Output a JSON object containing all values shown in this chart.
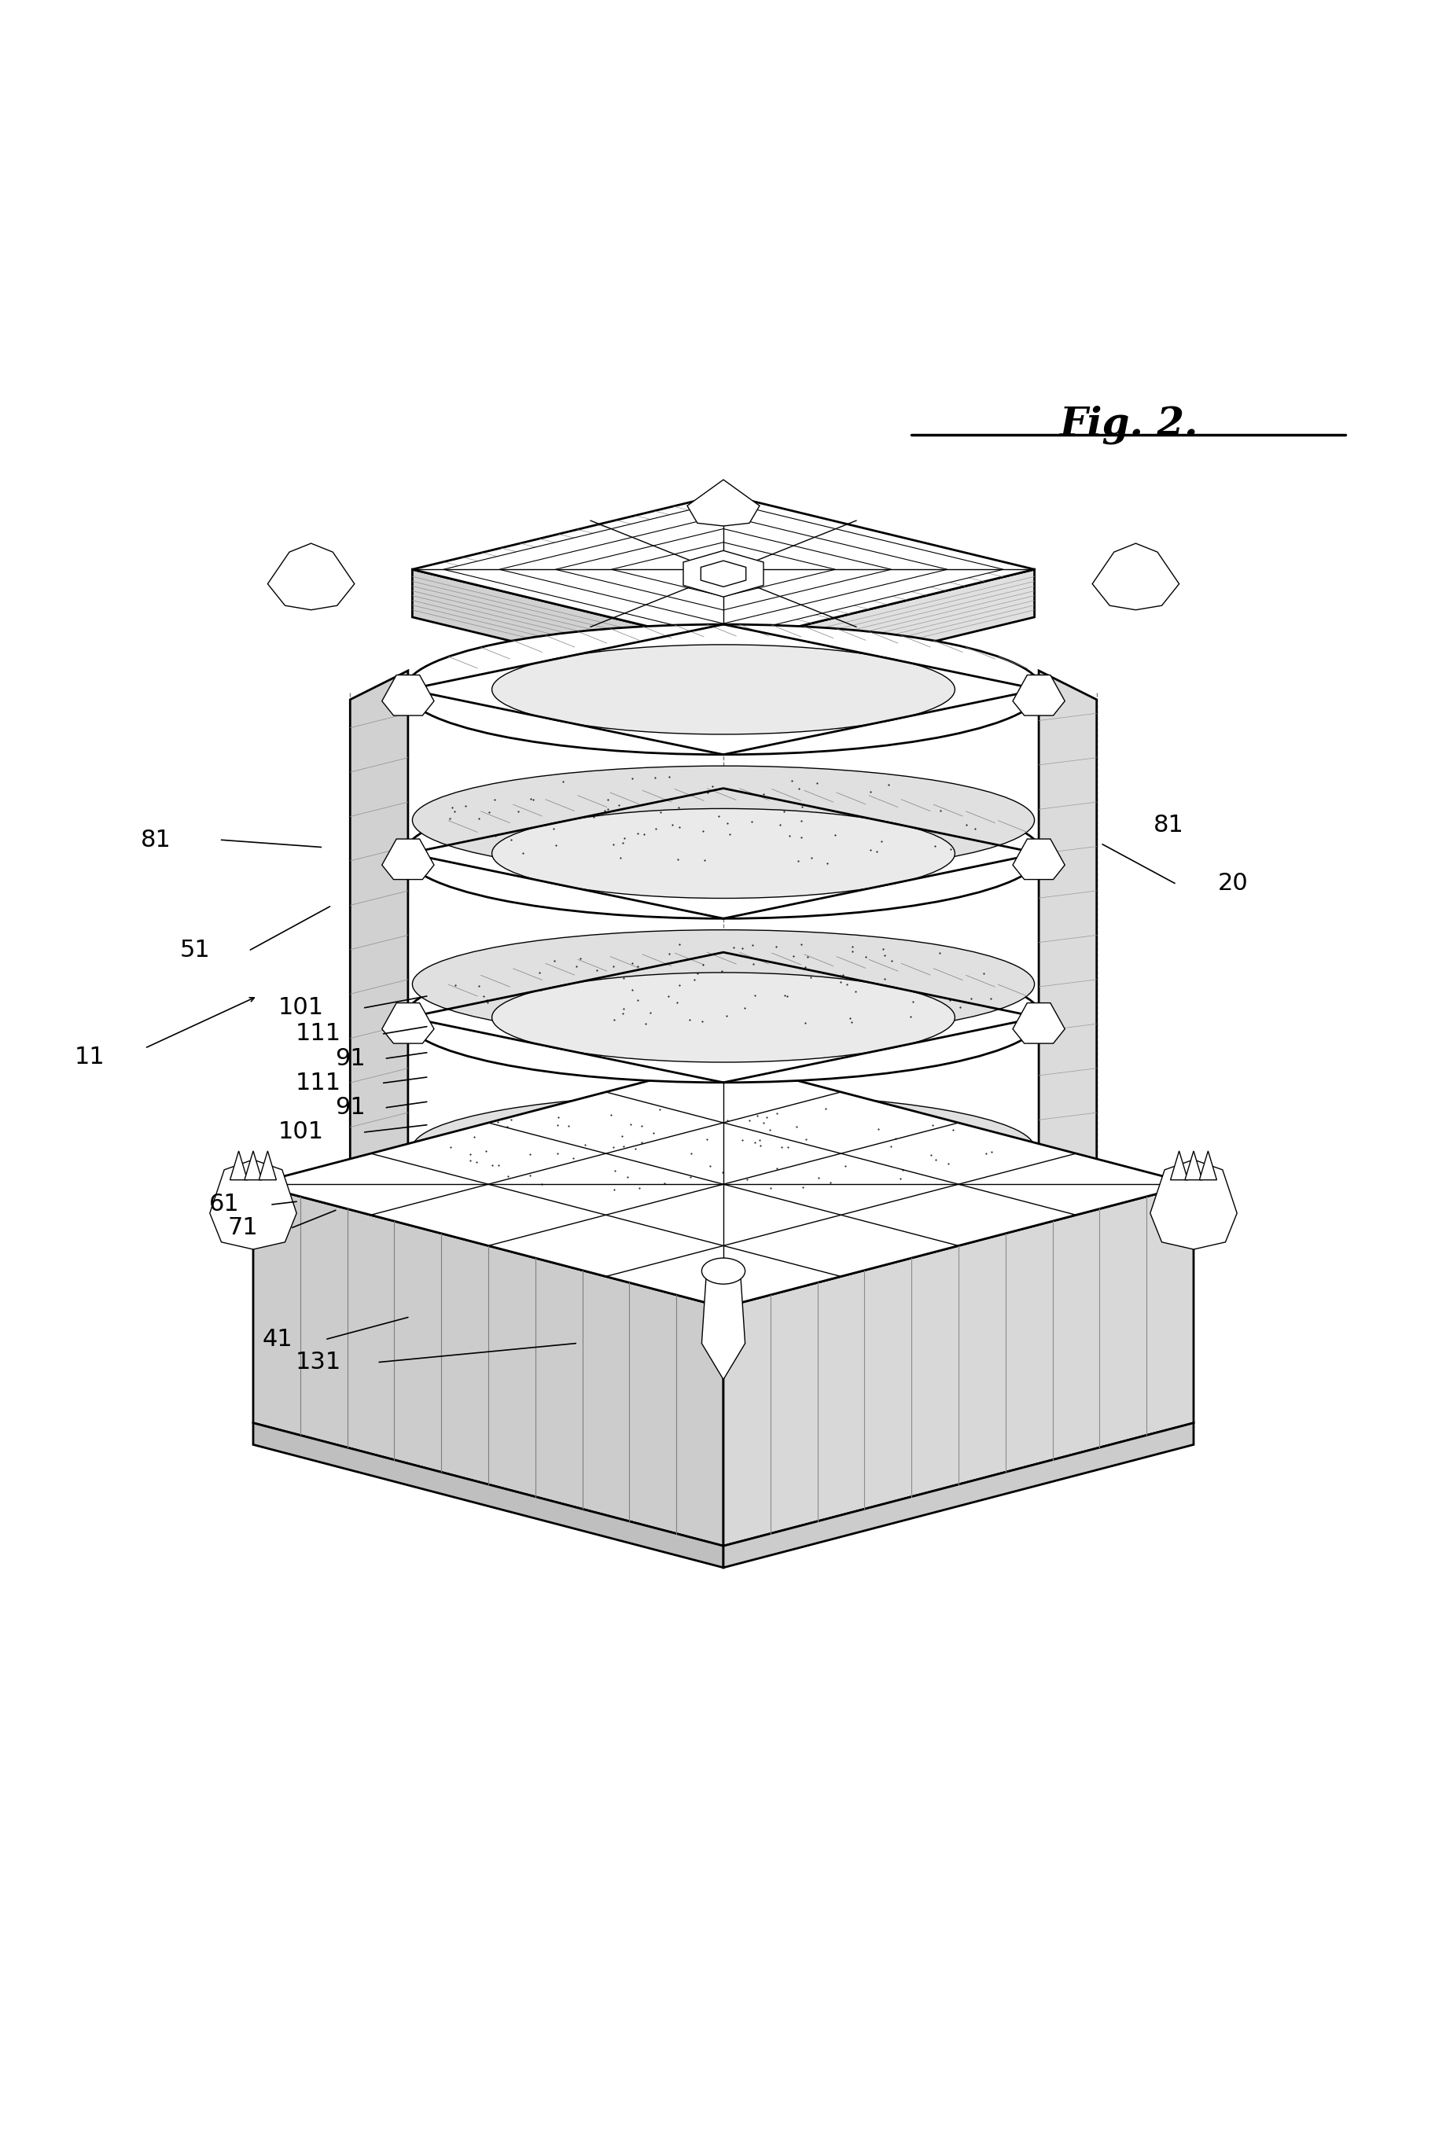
{
  "title": "Fig. 2.",
  "background_color": "#ffffff",
  "line_color": "#000000",
  "fig_width": 18.4,
  "fig_height": 27.18,
  "annotation_fontsize": 22
}
